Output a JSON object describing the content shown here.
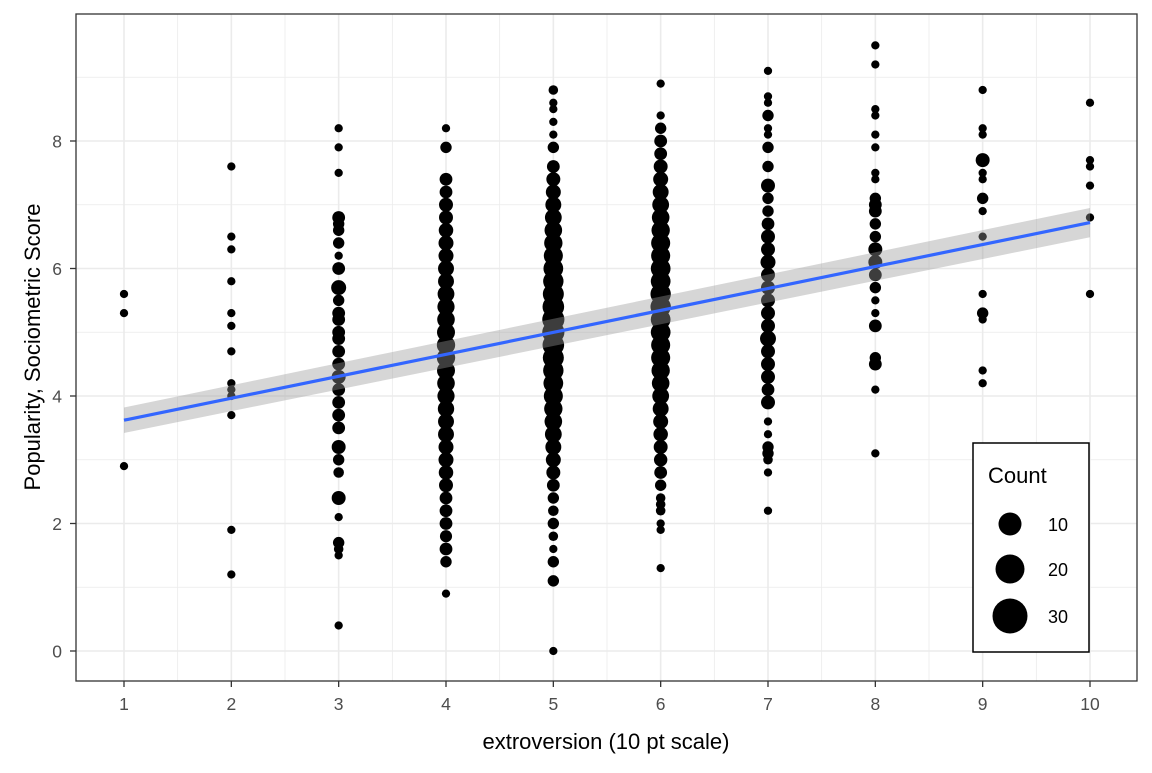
{
  "chart_data": {
    "type": "scatter",
    "title": "",
    "xlabel": "extroversion (10 pt scale)",
    "ylabel": "Popularity, Sociometric Score",
    "xlim": [
      0.55,
      10.45
    ],
    "ylim": [
      -0.47,
      9.99
    ],
    "x_ticks": [
      1,
      2,
      3,
      4,
      5,
      6,
      7,
      8,
      9,
      10
    ],
    "y_ticks": [
      0,
      2,
      4,
      6,
      8
    ],
    "grid": true,
    "theme": "bw",
    "point_color": "#000000",
    "size_legend": {
      "title": "Count",
      "position": "inside-bottom-right",
      "entries": [
        {
          "label": "10",
          "value": 10
        },
        {
          "label": "20",
          "value": 20
        },
        {
          "label": "30",
          "value": 30
        }
      ]
    },
    "trend_line": {
      "method": "lm",
      "color": "#3366FF",
      "ci_fill": "#999999",
      "x": [
        1,
        10
      ],
      "y": [
        3.62,
        6.72
      ],
      "ci_lower": [
        3.42,
        6.49
      ],
      "ci_upper": [
        3.82,
        6.95
      ]
    },
    "series": [
      {
        "x": 1,
        "points": [
          [
            5.6,
            1
          ],
          [
            5.3,
            1
          ],
          [
            2.9,
            1
          ]
        ]
      },
      {
        "x": 2,
        "points": [
          [
            7.6,
            1
          ],
          [
            6.5,
            1
          ],
          [
            6.3,
            1
          ],
          [
            5.8,
            1
          ],
          [
            5.3,
            1
          ],
          [
            5.1,
            1
          ],
          [
            4.7,
            1
          ],
          [
            4.2,
            1
          ],
          [
            4.1,
            1
          ],
          [
            4.0,
            1
          ],
          [
            3.7,
            1
          ],
          [
            1.9,
            1
          ],
          [
            1.2,
            1
          ]
        ]
      },
      {
        "x": 3,
        "points": [
          [
            8.2,
            1
          ],
          [
            7.9,
            1
          ],
          [
            7.5,
            1
          ],
          [
            6.8,
            6
          ],
          [
            6.7,
            4
          ],
          [
            6.6,
            4
          ],
          [
            6.4,
            4
          ],
          [
            6.2,
            1
          ],
          [
            6.0,
            6
          ],
          [
            5.7,
            10
          ],
          [
            5.5,
            4
          ],
          [
            5.3,
            6
          ],
          [
            5.2,
            6
          ],
          [
            5.0,
            6
          ],
          [
            4.9,
            6
          ],
          [
            4.7,
            6
          ],
          [
            4.5,
            6
          ],
          [
            4.3,
            8
          ],
          [
            4.1,
            6
          ],
          [
            3.9,
            6
          ],
          [
            3.7,
            6
          ],
          [
            3.5,
            6
          ],
          [
            3.2,
            8
          ],
          [
            3.0,
            4
          ],
          [
            2.8,
            3
          ],
          [
            2.4,
            8
          ],
          [
            2.1,
            1
          ],
          [
            1.7,
            4
          ],
          [
            1.6,
            2
          ],
          [
            1.5,
            1
          ],
          [
            0.4,
            1
          ]
        ]
      },
      {
        "x": 4,
        "points": [
          [
            8.2,
            1
          ],
          [
            7.9,
            4
          ],
          [
            7.4,
            6
          ],
          [
            7.2,
            6
          ],
          [
            7.0,
            8
          ],
          [
            6.8,
            8
          ],
          [
            6.6,
            9
          ],
          [
            6.4,
            10
          ],
          [
            6.2,
            10
          ],
          [
            6.0,
            12
          ],
          [
            5.8,
            12
          ],
          [
            5.6,
            14
          ],
          [
            5.4,
            15
          ],
          [
            5.2,
            16
          ],
          [
            5.0,
            17
          ],
          [
            4.8,
            18
          ],
          [
            4.6,
            18
          ],
          [
            4.4,
            17
          ],
          [
            4.2,
            16
          ],
          [
            4.0,
            15
          ],
          [
            3.8,
            13
          ],
          [
            3.6,
            12
          ],
          [
            3.4,
            12
          ],
          [
            3.2,
            10
          ],
          [
            3.0,
            10
          ],
          [
            2.8,
            9
          ],
          [
            2.6,
            8
          ],
          [
            2.4,
            6
          ],
          [
            2.2,
            6
          ],
          [
            2.0,
            6
          ],
          [
            1.8,
            5
          ],
          [
            1.6,
            6
          ],
          [
            1.4,
            4
          ],
          [
            0.9,
            1
          ]
        ]
      },
      {
        "x": 5,
        "points": [
          [
            8.8,
            2
          ],
          [
            8.6,
            1
          ],
          [
            8.5,
            1
          ],
          [
            8.3,
            1
          ],
          [
            8.1,
            1
          ],
          [
            7.9,
            4
          ],
          [
            7.6,
            6
          ],
          [
            7.4,
            8
          ],
          [
            7.2,
            10
          ],
          [
            7.0,
            12
          ],
          [
            6.8,
            14
          ],
          [
            6.6,
            16
          ],
          [
            6.4,
            18
          ],
          [
            6.2,
            20
          ],
          [
            6.0,
            22
          ],
          [
            5.8,
            24
          ],
          [
            5.6,
            26
          ],
          [
            5.4,
            28
          ],
          [
            5.2,
            30
          ],
          [
            5.0,
            30
          ],
          [
            4.8,
            28
          ],
          [
            4.6,
            26
          ],
          [
            4.4,
            24
          ],
          [
            4.2,
            22
          ],
          [
            4.0,
            20
          ],
          [
            3.8,
            18
          ],
          [
            3.6,
            16
          ],
          [
            3.4,
            14
          ],
          [
            3.2,
            12
          ],
          [
            3.0,
            10
          ],
          [
            2.8,
            8
          ],
          [
            2.6,
            6
          ],
          [
            2.4,
            4
          ],
          [
            2.2,
            3
          ],
          [
            2.0,
            4
          ],
          [
            1.8,
            2
          ],
          [
            1.6,
            1
          ],
          [
            1.4,
            4
          ],
          [
            1.1,
            4
          ],
          [
            0.0,
            1
          ]
        ]
      },
      {
        "x": 6,
        "points": [
          [
            8.9,
            1
          ],
          [
            8.4,
            1
          ],
          [
            8.2,
            4
          ],
          [
            8.0,
            6
          ],
          [
            7.8,
            6
          ],
          [
            7.6,
            8
          ],
          [
            7.4,
            10
          ],
          [
            7.2,
            12
          ],
          [
            7.0,
            14
          ],
          [
            6.8,
            16
          ],
          [
            6.6,
            18
          ],
          [
            6.4,
            20
          ],
          [
            6.2,
            20
          ],
          [
            6.0,
            22
          ],
          [
            5.8,
            22
          ],
          [
            5.6,
            24
          ],
          [
            5.4,
            24
          ],
          [
            5.2,
            22
          ],
          [
            5.0,
            22
          ],
          [
            4.8,
            20
          ],
          [
            4.6,
            20
          ],
          [
            4.4,
            18
          ],
          [
            4.2,
            16
          ],
          [
            4.0,
            14
          ],
          [
            3.8,
            12
          ],
          [
            3.6,
            10
          ],
          [
            3.4,
            9
          ],
          [
            3.2,
            8
          ],
          [
            3.0,
            7
          ],
          [
            2.8,
            6
          ],
          [
            2.6,
            4
          ],
          [
            2.4,
            2
          ],
          [
            2.3,
            2
          ],
          [
            2.2,
            2
          ],
          [
            2.0,
            1
          ],
          [
            1.9,
            1
          ],
          [
            1.3,
            1
          ]
        ]
      },
      {
        "x": 7,
        "points": [
          [
            9.1,
            1
          ],
          [
            8.7,
            1
          ],
          [
            8.6,
            1
          ],
          [
            8.4,
            4
          ],
          [
            8.2,
            1
          ],
          [
            8.1,
            1
          ],
          [
            7.9,
            4
          ],
          [
            7.6,
            4
          ],
          [
            7.3,
            8
          ],
          [
            7.1,
            4
          ],
          [
            6.9,
            4
          ],
          [
            6.7,
            6
          ],
          [
            6.5,
            8
          ],
          [
            6.3,
            8
          ],
          [
            6.1,
            10
          ],
          [
            5.9,
            8
          ],
          [
            5.7,
            8
          ],
          [
            5.5,
            8
          ],
          [
            5.3,
            8
          ],
          [
            5.1,
            8
          ],
          [
            4.9,
            12
          ],
          [
            4.7,
            8
          ],
          [
            4.5,
            8
          ],
          [
            4.3,
            8
          ],
          [
            4.1,
            6
          ],
          [
            3.9,
            8
          ],
          [
            3.6,
            1
          ],
          [
            3.4,
            1
          ],
          [
            3.2,
            4
          ],
          [
            3.1,
            4
          ],
          [
            3.0,
            2
          ],
          [
            2.8,
            1
          ],
          [
            2.2,
            1
          ]
        ]
      },
      {
        "x": 8,
        "points": [
          [
            9.5,
            1
          ],
          [
            9.2,
            1
          ],
          [
            8.5,
            1
          ],
          [
            8.4,
            1
          ],
          [
            8.1,
            1
          ],
          [
            7.9,
            1
          ],
          [
            7.5,
            1
          ],
          [
            7.4,
            1
          ],
          [
            7.1,
            4
          ],
          [
            7.0,
            6
          ],
          [
            6.9,
            6
          ],
          [
            6.7,
            4
          ],
          [
            6.5,
            4
          ],
          [
            6.3,
            8
          ],
          [
            6.1,
            8
          ],
          [
            5.9,
            6
          ],
          [
            5.7,
            4
          ],
          [
            5.5,
            1
          ],
          [
            5.3,
            1
          ],
          [
            5.1,
            6
          ],
          [
            4.6,
            4
          ],
          [
            4.5,
            6
          ],
          [
            4.1,
            1
          ],
          [
            3.1,
            1
          ]
        ]
      },
      {
        "x": 9,
        "points": [
          [
            8.8,
            1
          ],
          [
            8.2,
            1
          ],
          [
            8.1,
            1
          ],
          [
            7.7,
            8
          ],
          [
            7.5,
            1
          ],
          [
            7.4,
            1
          ],
          [
            7.1,
            4
          ],
          [
            6.9,
            1
          ],
          [
            6.5,
            1
          ],
          [
            5.6,
            1
          ],
          [
            5.3,
            4
          ],
          [
            5.2,
            1
          ],
          [
            4.4,
            1
          ],
          [
            4.2,
            1
          ]
        ]
      },
      {
        "x": 10,
        "points": [
          [
            8.6,
            1
          ],
          [
            7.7,
            1
          ],
          [
            7.6,
            1
          ],
          [
            7.3,
            1
          ],
          [
            6.8,
            1
          ],
          [
            5.6,
            1
          ]
        ]
      }
    ]
  }
}
